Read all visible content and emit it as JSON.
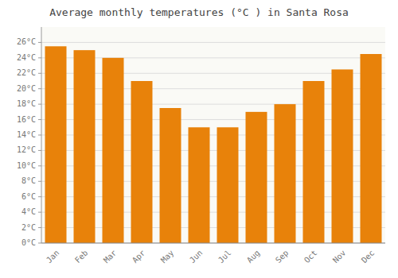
{
  "chart_data": {
    "type": "bar",
    "title": "Average monthly temperatures (°C ) in Santa Rosa",
    "categories": [
      "Jan",
      "Feb",
      "Mar",
      "Apr",
      "May",
      "Jun",
      "Jul",
      "Aug",
      "Sep",
      "Oct",
      "Nov",
      "Dec"
    ],
    "values": [
      25.5,
      25.0,
      24.0,
      21.0,
      17.5,
      15.0,
      15.0,
      17.0,
      18.0,
      21.0,
      22.5,
      24.5
    ],
    "color": "#E8820A",
    "ylim": [
      0,
      28
    ],
    "yticks": [
      {
        "value": 0,
        "label": "0°C"
      },
      {
        "value": 2,
        "label": "2°C"
      },
      {
        "value": 4,
        "label": "4°C"
      },
      {
        "value": 6,
        "label": "6°C"
      },
      {
        "value": 8,
        "label": "8°C"
      },
      {
        "value": 10,
        "label": "10°C"
      },
      {
        "value": 12,
        "label": "12°C"
      },
      {
        "value": 14,
        "label": "14°C"
      },
      {
        "value": 16,
        "label": "16°C"
      },
      {
        "value": 18,
        "label": "18°C"
      },
      {
        "value": 20,
        "label": "20°C"
      },
      {
        "value": 22,
        "label": "22°C"
      },
      {
        "value": 24,
        "label": "24°C"
      },
      {
        "value": 26,
        "label": "26°C"
      }
    ],
    "grid": true
  }
}
